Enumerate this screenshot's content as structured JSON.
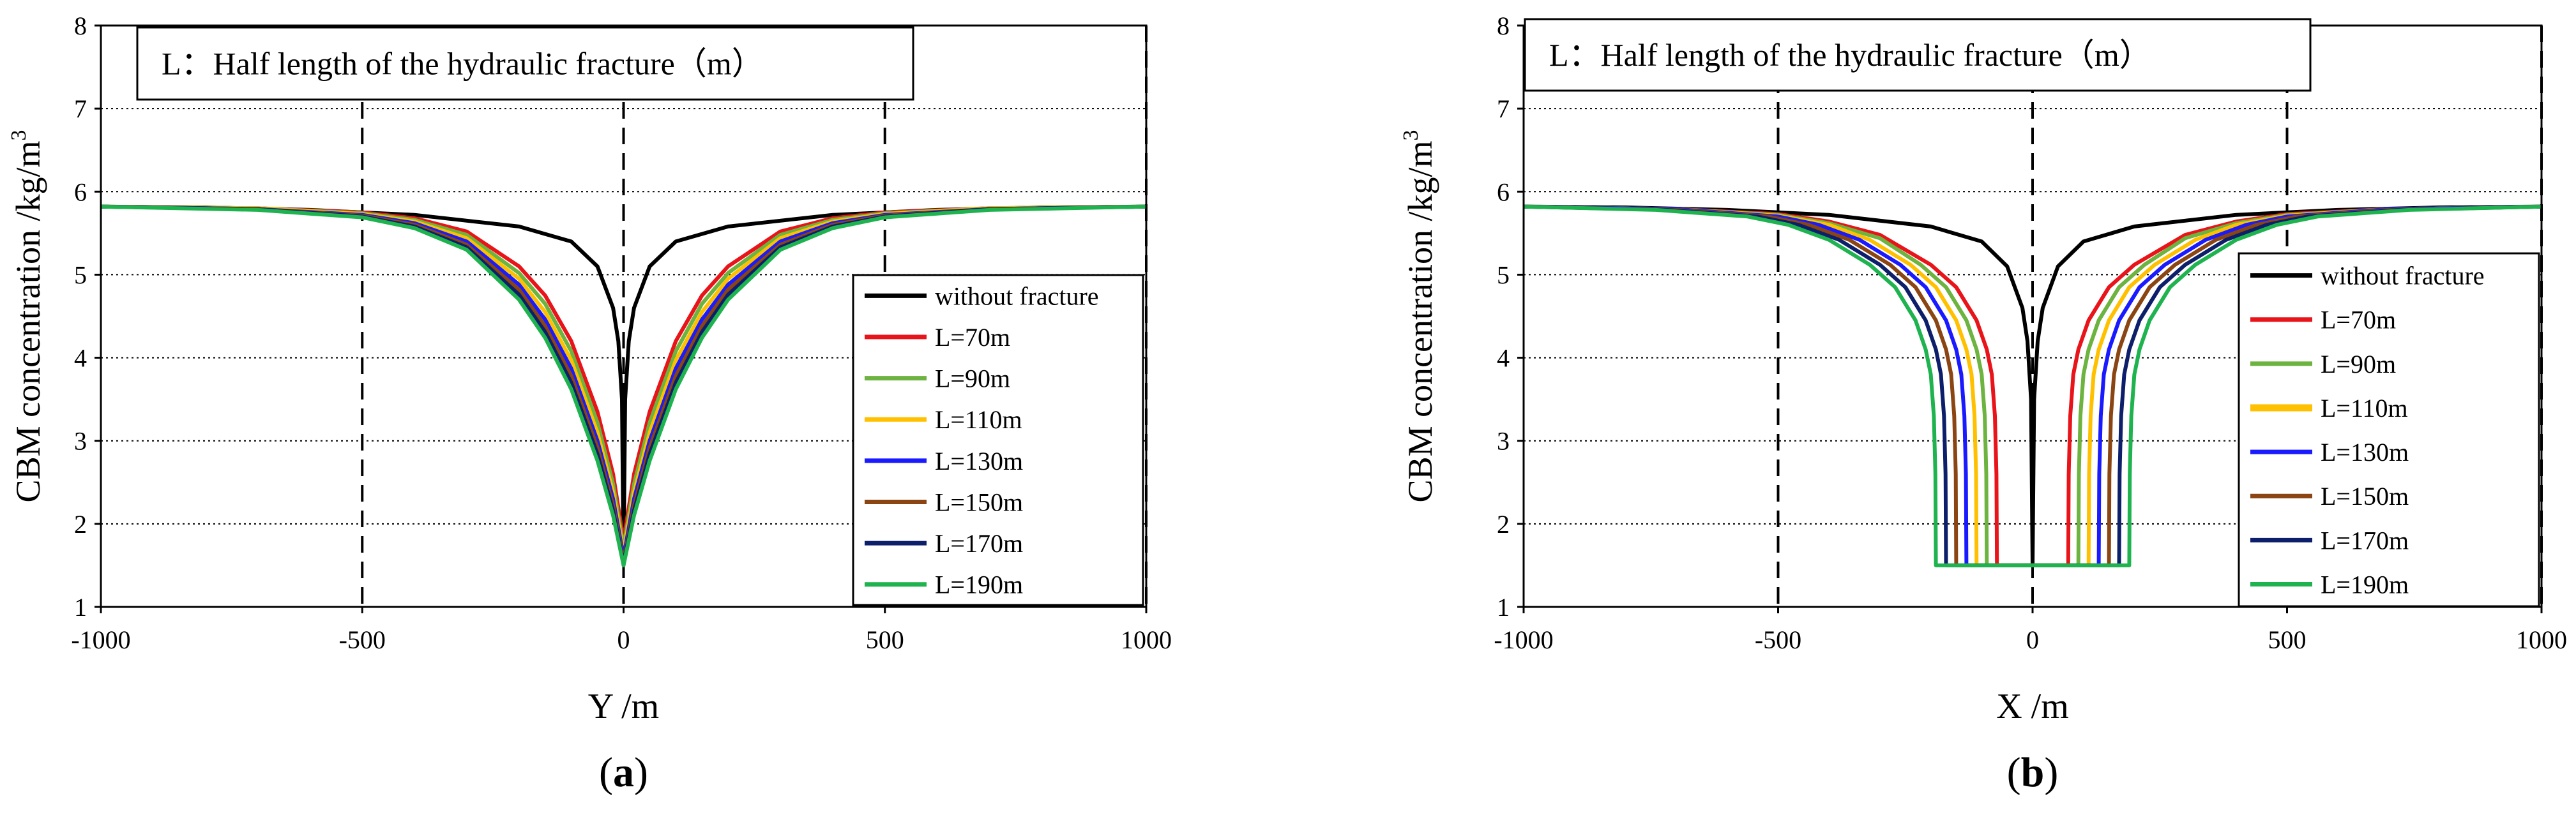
{
  "colors": {
    "without fracture": "#000000",
    "L=70m": "#e8141a",
    "L=90m": "#6cb33f",
    "L=110m": "#ffc000",
    "L=130m": "#1a1aff",
    "L=150m": "#8b4513",
    "L=170m": "#0d1f6b",
    "L=190m": "#1fb34f"
  },
  "chart_data": [
    {
      "type": "line",
      "panel_label": "(a)",
      "annotation": "L：Half length of the hydraulic fracture（m）",
      "xlabel": "Y /m",
      "ylabel": "CBM concentration /kg/m",
      "ylabel_superscript": "3",
      "xlim": [
        -1000,
        1000
      ],
      "ylim": [
        1,
        8
      ],
      "xticks": [
        "-1000",
        "-500",
        "0",
        "500",
        "1000"
      ],
      "yticks": [
        "1",
        "2",
        "3",
        "4",
        "5",
        "6",
        "7",
        "8"
      ],
      "grid": "horizontal dotted",
      "legend_position": "lower-right",
      "series": [
        {
          "name": "without fracture",
          "x": [
            -1000,
            -800,
            -600,
            -400,
            -200,
            -100,
            -50,
            -20,
            -10,
            -3,
            0,
            3,
            10,
            20,
            50,
            100,
            200,
            400,
            600,
            800,
            1000
          ],
          "y": [
            5.82,
            5.81,
            5.78,
            5.72,
            5.58,
            5.4,
            5.1,
            4.6,
            4.2,
            3.5,
            1.5,
            3.5,
            4.2,
            4.6,
            5.1,
            5.4,
            5.58,
            5.72,
            5.78,
            5.81,
            5.82
          ]
        },
        {
          "name": "L=70m",
          "x": [
            -1000,
            -700,
            -500,
            -400,
            -300,
            -200,
            -150,
            -100,
            -50,
            -20,
            0,
            20,
            50,
            100,
            150,
            200,
            300,
            400,
            500,
            700,
            1000
          ],
          "y": [
            5.82,
            5.8,
            5.75,
            5.68,
            5.52,
            5.1,
            4.75,
            4.2,
            3.35,
            2.6,
            1.8,
            2.6,
            3.35,
            4.2,
            4.75,
            5.1,
            5.52,
            5.68,
            5.75,
            5.8,
            5.82
          ]
        },
        {
          "name": "L=90m",
          "x": [
            -1000,
            -700,
            -500,
            -400,
            -300,
            -200,
            -150,
            -100,
            -50,
            -20,
            0,
            20,
            50,
            100,
            150,
            200,
            300,
            400,
            500,
            700,
            1000
          ],
          "y": [
            5.82,
            5.8,
            5.74,
            5.66,
            5.48,
            5.02,
            4.65,
            4.08,
            3.22,
            2.48,
            1.72,
            2.48,
            3.22,
            4.08,
            4.65,
            5.02,
            5.48,
            5.66,
            5.74,
            5.8,
            5.82
          ]
        },
        {
          "name": "L=110m",
          "x": [
            -1000,
            -700,
            -500,
            -400,
            -300,
            -200,
            -150,
            -100,
            -50,
            -20,
            0,
            20,
            50,
            100,
            150,
            200,
            300,
            400,
            500,
            700,
            1000
          ],
          "y": [
            5.82,
            5.8,
            5.73,
            5.64,
            5.44,
            4.95,
            4.55,
            3.97,
            3.1,
            2.38,
            1.66,
            2.38,
            3.1,
            3.97,
            4.55,
            4.95,
            5.44,
            5.64,
            5.73,
            5.8,
            5.82
          ]
        },
        {
          "name": "L=130m",
          "x": [
            -1000,
            -700,
            -500,
            -400,
            -300,
            -200,
            -150,
            -100,
            -50,
            -20,
            0,
            20,
            50,
            100,
            150,
            200,
            300,
            400,
            500,
            700,
            1000
          ],
          "y": [
            5.82,
            5.79,
            5.72,
            5.62,
            5.4,
            4.88,
            4.46,
            3.87,
            3.0,
            2.3,
            1.6,
            2.3,
            3.0,
            3.87,
            4.46,
            4.88,
            5.4,
            5.62,
            5.72,
            5.79,
            5.82
          ]
        },
        {
          "name": "L=150m",
          "x": [
            -1000,
            -700,
            -500,
            -400,
            -300,
            -200,
            -150,
            -100,
            -50,
            -20,
            0,
            20,
            50,
            100,
            150,
            200,
            300,
            400,
            500,
            700,
            1000
          ],
          "y": [
            5.82,
            5.79,
            5.71,
            5.6,
            5.36,
            4.82,
            4.38,
            3.78,
            2.92,
            2.22,
            1.55,
            2.22,
            2.92,
            3.78,
            4.38,
            4.82,
            5.36,
            5.6,
            5.71,
            5.79,
            5.82
          ]
        },
        {
          "name": "L=170m",
          "x": [
            -1000,
            -700,
            -500,
            -400,
            -300,
            -200,
            -150,
            -100,
            -50,
            -20,
            0,
            20,
            50,
            100,
            150,
            200,
            300,
            400,
            500,
            700,
            1000
          ],
          "y": [
            5.82,
            5.79,
            5.7,
            5.58,
            5.33,
            4.76,
            4.31,
            3.7,
            2.84,
            2.16,
            1.52,
            2.16,
            2.84,
            3.7,
            4.31,
            4.76,
            5.33,
            5.58,
            5.7,
            5.79,
            5.82
          ]
        },
        {
          "name": "L=190m",
          "x": [
            -1000,
            -700,
            -500,
            -400,
            -300,
            -200,
            -150,
            -100,
            -50,
            -20,
            0,
            20,
            50,
            100,
            150,
            200,
            300,
            400,
            500,
            700,
            1000
          ],
          "y": [
            5.82,
            5.78,
            5.69,
            5.56,
            5.3,
            4.7,
            4.24,
            3.62,
            2.76,
            2.1,
            1.5,
            2.1,
            2.76,
            3.62,
            4.24,
            4.7,
            5.3,
            5.56,
            5.69,
            5.78,
            5.82
          ]
        }
      ]
    },
    {
      "type": "line",
      "panel_label": "(b)",
      "annotation": "L：Half length of the hydraulic fracture（m）",
      "xlabel": "X /m",
      "ylabel": "CBM concentration /kg/m",
      "ylabel_superscript": "3",
      "xlim": [
        -1000,
        1000
      ],
      "ylim": [
        1,
        8
      ],
      "xticks": [
        "-1000",
        "-500",
        "0",
        "500",
        "1000"
      ],
      "yticks": [
        "1",
        "2",
        "3",
        "4",
        "5",
        "6",
        "7",
        "8"
      ],
      "grid": "horizontal dotted",
      "legend_position": "lower-right",
      "series": [
        {
          "name": "without fracture",
          "x": [
            -1000,
            -800,
            -600,
            -400,
            -200,
            -100,
            -50,
            -20,
            -10,
            -3,
            0,
            3,
            10,
            20,
            50,
            100,
            200,
            400,
            600,
            800,
            1000
          ],
          "y": [
            5.82,
            5.81,
            5.78,
            5.72,
            5.58,
            5.4,
            5.1,
            4.6,
            4.2,
            3.5,
            1.5,
            3.5,
            4.2,
            4.6,
            5.1,
            5.4,
            5.58,
            5.72,
            5.78,
            5.81,
            5.82
          ]
        },
        {
          "name": "L=70m",
          "x": [
            -1000,
            -700,
            -500,
            -400,
            -300,
            -200,
            -150,
            -110,
            -90,
            -80,
            -74,
            -71,
            -70,
            70,
            71,
            74,
            80,
            90,
            110,
            150,
            200,
            300,
            400,
            500,
            700,
            1000
          ],
          "y": [
            5.82,
            5.79,
            5.73,
            5.64,
            5.48,
            5.12,
            4.85,
            4.45,
            4.1,
            3.8,
            3.3,
            2.6,
            1.5,
            1.5,
            2.6,
            3.3,
            3.8,
            4.1,
            4.45,
            4.85,
            5.12,
            5.48,
            5.64,
            5.73,
            5.79,
            5.82
          ]
        },
        {
          "name": "L=90m",
          "x": [
            -1000,
            -700,
            -500,
            -400,
            -300,
            -220,
            -170,
            -130,
            -110,
            -100,
            -94,
            -91,
            -90,
            90,
            91,
            94,
            100,
            110,
            130,
            170,
            220,
            300,
            400,
            500,
            700,
            1000
          ],
          "y": [
            5.82,
            5.79,
            5.72,
            5.62,
            5.44,
            5.12,
            4.85,
            4.45,
            4.1,
            3.8,
            3.3,
            2.6,
            1.5,
            1.5,
            2.6,
            3.3,
            3.8,
            4.1,
            4.45,
            4.85,
            5.12,
            5.44,
            5.62,
            5.72,
            5.79,
            5.82
          ]
        },
        {
          "name": "L=110m",
          "x": [
            -1000,
            -700,
            -500,
            -400,
            -320,
            -240,
            -190,
            -150,
            -130,
            -120,
            -114,
            -111,
            -110,
            110,
            111,
            114,
            120,
            130,
            150,
            190,
            240,
            320,
            400,
            500,
            700,
            1000
          ],
          "y": [
            5.82,
            5.79,
            5.71,
            5.6,
            5.42,
            5.12,
            4.85,
            4.45,
            4.1,
            3.8,
            3.3,
            2.6,
            1.5,
            1.5,
            2.6,
            3.3,
            3.8,
            4.1,
            4.45,
            4.85,
            5.12,
            5.42,
            5.6,
            5.71,
            5.79,
            5.82
          ]
        },
        {
          "name": "L=130m",
          "x": [
            -1000,
            -700,
            -500,
            -420,
            -340,
            -260,
            -210,
            -170,
            -150,
            -140,
            -134,
            -131,
            -130,
            130,
            131,
            134,
            140,
            150,
            170,
            210,
            260,
            340,
            420,
            500,
            700,
            1000
          ],
          "y": [
            5.82,
            5.79,
            5.7,
            5.6,
            5.42,
            5.12,
            4.85,
            4.45,
            4.1,
            3.8,
            3.3,
            2.6,
            1.5,
            1.5,
            2.6,
            3.3,
            3.8,
            4.1,
            4.45,
            4.85,
            5.12,
            5.42,
            5.6,
            5.7,
            5.79,
            5.82
          ]
        },
        {
          "name": "L=150m",
          "x": [
            -1000,
            -700,
            -520,
            -440,
            -360,
            -280,
            -230,
            -190,
            -170,
            -160,
            -154,
            -151,
            -150,
            150,
            151,
            154,
            160,
            170,
            190,
            230,
            280,
            360,
            440,
            520,
            700,
            1000
          ],
          "y": [
            5.82,
            5.78,
            5.7,
            5.6,
            5.42,
            5.12,
            4.85,
            4.45,
            4.1,
            3.8,
            3.3,
            2.6,
            1.5,
            1.5,
            2.6,
            3.3,
            3.8,
            4.1,
            4.45,
            4.85,
            5.12,
            5.42,
            5.6,
            5.7,
            5.78,
            5.82
          ]
        },
        {
          "name": "L=170m",
          "x": [
            -1000,
            -720,
            -540,
            -460,
            -380,
            -300,
            -250,
            -210,
            -190,
            -180,
            -174,
            -171,
            -170,
            170,
            171,
            174,
            180,
            190,
            210,
            250,
            300,
            380,
            460,
            540,
            720,
            1000
          ],
          "y": [
            5.82,
            5.78,
            5.7,
            5.6,
            5.42,
            5.12,
            4.85,
            4.45,
            4.1,
            3.8,
            3.3,
            2.6,
            1.5,
            1.5,
            2.6,
            3.3,
            3.8,
            4.1,
            4.45,
            4.85,
            5.12,
            5.42,
            5.6,
            5.7,
            5.78,
            5.82
          ]
        },
        {
          "name": "L=190m",
          "x": [
            -1000,
            -740,
            -560,
            -480,
            -400,
            -320,
            -270,
            -230,
            -210,
            -200,
            -194,
            -191,
            -190,
            190,
            191,
            194,
            200,
            210,
            230,
            270,
            320,
            400,
            480,
            560,
            740,
            1000
          ],
          "y": [
            5.82,
            5.78,
            5.7,
            5.6,
            5.42,
            5.12,
            4.85,
            4.45,
            4.1,
            3.8,
            3.3,
            2.6,
            1.5,
            1.5,
            2.6,
            3.3,
            3.8,
            4.1,
            4.45,
            4.85,
            5.12,
            5.42,
            5.6,
            5.7,
            5.78,
            5.82
          ]
        }
      ]
    }
  ]
}
